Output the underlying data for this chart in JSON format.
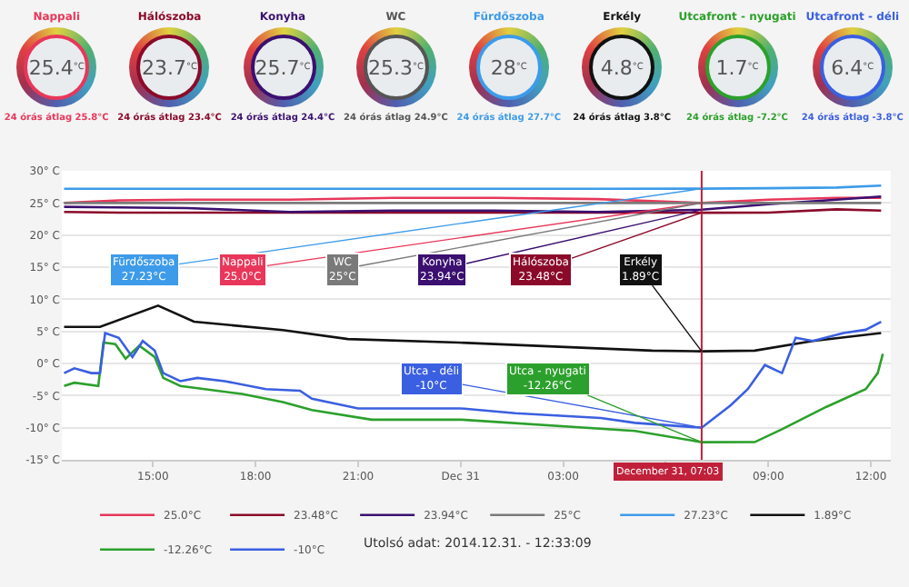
{
  "chart_data": [
    {
      "type": "other",
      "categories": [
        "Nappali",
        "Hálószoba",
        "Konyha",
        "WC",
        "Fürdőszoba",
        "Erkély",
        "Utcafront - nyugati",
        "Utcafront - déli"
      ],
      "values": [
        25.4,
        23.7,
        25.7,
        25.3,
        28.0,
        4.8,
        1.7,
        6.4
      ],
      "data_labels": true,
      "ylabel": "°C",
      "colors": [
        "#e8375a",
        "#8b0a2a",
        "#3b1070",
        "#555555",
        "#3d9be9",
        "#111111",
        "#2ca02c",
        "#3a5fe0"
      ],
      "annotations": [
        "24 órás átlag 25.8°C",
        "24 órás átlag 23.4°C",
        "24 órás átlag 24.4°C",
        "24 órás átlag 24.9°C",
        "24 órás átlag 27.7°C",
        "24 órás átlag 3.8°C",
        "24 órás átlag -7.2°C",
        "24 órás átlag -3.8°C"
      ]
    },
    {
      "type": "line",
      "xlim": [
        "2014-12-30T12:20",
        "2014-12-31T12:35"
      ],
      "xticks": [
        {
          "value": "2014-12-30T15:00",
          "label": "15:00"
        },
        {
          "value": "2014-12-30T18:00",
          "label": "18:00"
        },
        {
          "value": "2014-12-30T21:00",
          "label": "21:00"
        },
        {
          "value": "2014-12-31T00:00",
          "label": "Dec 31"
        },
        {
          "value": "2014-12-31T03:00",
          "label": "03:00"
        },
        {
          "value": "2014-12-31T06:00",
          "label": null
        },
        {
          "value": "2014-12-31T09:00",
          "label": "09:00"
        },
        {
          "value": "2014-12-31T12:00",
          "label": "12:00"
        }
      ],
      "ylim": [
        -15,
        30
      ],
      "yticks": [
        {
          "value": 30,
          "label": "30° C"
        },
        {
          "value": 25,
          "label": "25° C"
        },
        {
          "value": 20,
          "label": "20° C"
        },
        {
          "value": 15,
          "label": "15° C"
        },
        {
          "value": 10,
          "label": "10° C"
        },
        {
          "value": 5,
          "label": "5° C"
        },
        {
          "value": 0,
          "label": "0° C"
        },
        {
          "value": -5,
          "label": "-5° C"
        },
        {
          "value": -10,
          "label": "-10° C"
        },
        {
          "value": -15,
          "label": "-15° C"
        }
      ],
      "grid": "y",
      "legend": "bottom",
      "marker": "none",
      "line_style": "solid",
      "series": [
        {
          "name": "25.0°C",
          "color": "#e8375a",
          "x": [
            "2014-12-30T12:24",
            "2014-12-30T14:00",
            "2014-12-30T16:00",
            "2014-12-30T19:00",
            "2014-12-30T22:00",
            "2014-12-31T01:00",
            "2014-12-31T04:00",
            "2014-12-31T07:03",
            "2014-12-31T09:00",
            "2014-12-31T11:00",
            "2014-12-31T12:18"
          ],
          "values": [
            25.0,
            25.4,
            25.5,
            25.5,
            25.8,
            25.8,
            25.6,
            25.0,
            25.5,
            25.8,
            25.8
          ]
        },
        {
          "name": "23.48°C",
          "color": "#8b0a2a",
          "x": [
            "2014-12-30T12:24",
            "2014-12-30T14:00",
            "2014-12-30T16:00",
            "2014-12-30T19:00",
            "2014-12-30T22:00",
            "2014-12-31T01:00",
            "2014-12-31T04:00",
            "2014-12-31T07:03",
            "2014-12-31T09:00",
            "2014-12-31T11:00",
            "2014-12-31T12:18"
          ],
          "values": [
            23.6,
            23.5,
            23.5,
            23.5,
            23.5,
            23.5,
            23.5,
            23.48,
            23.5,
            24.0,
            23.8
          ]
        },
        {
          "name": "23.94°C",
          "color": "#3b1070",
          "x": [
            "2014-12-30T12:24",
            "2014-12-30T14:00",
            "2014-12-30T16:00",
            "2014-12-30T19:00",
            "2014-12-30T22:00",
            "2014-12-31T01:00",
            "2014-12-31T04:00",
            "2014-12-31T07:03",
            "2014-12-31T09:00",
            "2014-12-31T11:00",
            "2014-12-31T12:18"
          ],
          "values": [
            24.4,
            24.3,
            24.2,
            23.6,
            23.8,
            23.8,
            23.6,
            23.94,
            24.8,
            25.5,
            26.0
          ]
        },
        {
          "name": "25°C",
          "color": "#7a7a7a",
          "x": [
            "2014-12-30T12:24",
            "2014-12-30T14:00",
            "2014-12-30T16:00",
            "2014-12-30T19:00",
            "2014-12-30T22:00",
            "2014-12-31T01:00",
            "2014-12-31T04:00",
            "2014-12-31T07:03",
            "2014-12-31T09:00",
            "2014-12-31T11:00",
            "2014-12-31T12:18"
          ],
          "values": [
            25.0,
            25.0,
            25.0,
            25.0,
            25.0,
            25.0,
            25.0,
            25.0,
            25.0,
            25.0,
            25.0
          ]
        },
        {
          "name": "27.23°C",
          "color": "#3d9be9",
          "x": [
            "2014-12-30T12:24",
            "2014-12-30T14:00",
            "2014-12-30T16:00",
            "2014-12-30T19:00",
            "2014-12-30T22:00",
            "2014-12-31T01:00",
            "2014-12-31T04:00",
            "2014-12-31T07:03",
            "2014-12-31T09:00",
            "2014-12-31T11:00",
            "2014-12-31T12:18"
          ],
          "values": [
            27.2,
            27.2,
            27.2,
            27.2,
            27.2,
            27.2,
            27.2,
            27.23,
            27.3,
            27.4,
            27.7
          ]
        },
        {
          "name": "1.89°C",
          "color": "#111111",
          "x": [
            "2014-12-30T12:24",
            "2014-12-30T13:27",
            "2014-12-30T15:09",
            "2014-12-30T16:12",
            "2014-12-30T18:48",
            "2014-12-30T20:42",
            "2014-12-30T23:57",
            "2014-12-31T05:36",
            "2014-12-31T07:03",
            "2014-12-31T08:36",
            "2014-12-31T10:18",
            "2014-12-31T12:18"
          ],
          "values": [
            5.7,
            5.7,
            9.0,
            6.5,
            5.2,
            3.8,
            3.25,
            2.0,
            1.89,
            2.0,
            3.5,
            4.75
          ]
        },
        {
          "name": "-12.26°C",
          "color": "#2ca02c",
          "x": [
            "2014-12-30T12:24",
            "2014-12-30T12:42",
            "2014-12-30T13:24",
            "2014-12-30T13:33",
            "2014-12-30T13:54",
            "2014-12-30T14:12",
            "2014-12-30T14:36",
            "2014-12-30T15:03",
            "2014-12-30T15:18",
            "2014-12-30T15:48",
            "2014-12-30T17:36",
            "2014-12-30T18:48",
            "2014-12-30T19:39",
            "2014-12-30T21:24",
            "2014-12-31T00:00",
            "2014-12-31T05:06",
            "2014-12-31T07:03",
            "2014-12-31T08:36",
            "2014-12-31T09:24",
            "2014-12-31T10:42",
            "2014-12-31T11:51",
            "2014-12-31T12:12",
            "2014-12-31T12:21"
          ],
          "values": [
            -3.5,
            -3.0,
            -3.5,
            3.25,
            3.0,
            0.75,
            2.75,
            1.0,
            -2.25,
            -3.5,
            -4.75,
            -6.0,
            -7.25,
            -8.75,
            -8.75,
            -10.5,
            -12.26,
            -12.25,
            -10.25,
            -6.75,
            -4.0,
            -1.5,
            1.5
          ]
        },
        {
          "name": "-10°C",
          "color": "#3a5fe0",
          "x": [
            "2014-12-30T12:24",
            "2014-12-30T12:42",
            "2014-12-30T13:12",
            "2014-12-30T13:27",
            "2014-12-30T13:36",
            "2014-12-30T14:00",
            "2014-12-30T14:24",
            "2014-12-30T14:42",
            "2014-12-30T15:03",
            "2014-12-30T15:18",
            "2014-12-30T15:48",
            "2014-12-30T16:18",
            "2014-12-30T17:06",
            "2014-12-30T18:18",
            "2014-12-30T19:18",
            "2014-12-30T19:39",
            "2014-12-30T21:00",
            "2014-12-31T00:00",
            "2014-12-31T01:36",
            "2014-12-31T04:06",
            "2014-12-31T05:06",
            "2014-12-31T07:03",
            "2014-12-31T07:54",
            "2014-12-31T08:24",
            "2014-12-31T08:54",
            "2014-12-31T09:24",
            "2014-12-31T09:48",
            "2014-12-31T10:18",
            "2014-12-31T11:12",
            "2014-12-31T11:51",
            "2014-12-31T12:18"
          ],
          "values": [
            -1.5,
            -0.75,
            -1.5,
            -1.5,
            4.75,
            4.0,
            1.0,
            3.5,
            2.0,
            -1.5,
            -2.75,
            -2.25,
            -2.75,
            -4.0,
            -4.25,
            -5.5,
            -7.0,
            -7.0,
            -7.75,
            -8.5,
            -9.25,
            -10,
            -6.5,
            -4.0,
            -0.25,
            -1.5,
            4.0,
            3.5,
            4.75,
            5.25,
            6.5
          ]
        }
      ],
      "ref_lines": [
        {
          "axis": "x",
          "value": "2014-12-31T07:03",
          "label": "December 31, 07:03",
          "color": "#c0203a"
        }
      ],
      "annotations": [
        {
          "text": "Nappali\n25.0°C",
          "x": "2014-12-31T07:03",
          "y": 25.0
        },
        {
          "text": "Hálószoba\n23.48°C",
          "x": "2014-12-31T07:03",
          "y": 23.48
        },
        {
          "text": "Konyha\n23.94°C",
          "x": "2014-12-31T07:03",
          "y": 23.94
        },
        {
          "text": "WC\n25°C",
          "x": "2014-12-31T07:03",
          "y": 25
        },
        {
          "text": "Fürdőszoba\n27.23°C",
          "x": "2014-12-31T07:03",
          "y": 27.23
        },
        {
          "text": "Erkély\n1.89°C",
          "x": "2014-12-31T07:03",
          "y": 1.89
        },
        {
          "text": "Utca - nyugati\n-12.26°C",
          "x": "2014-12-31T07:03",
          "y": -12.26
        },
        {
          "text": "Utca - déli\n-10°C",
          "x": "2014-12-31T07:03",
          "y": -10
        },
        "Utolsó adat: 2014.12.31. - 12:33:09"
      ]
    }
  ]
}
